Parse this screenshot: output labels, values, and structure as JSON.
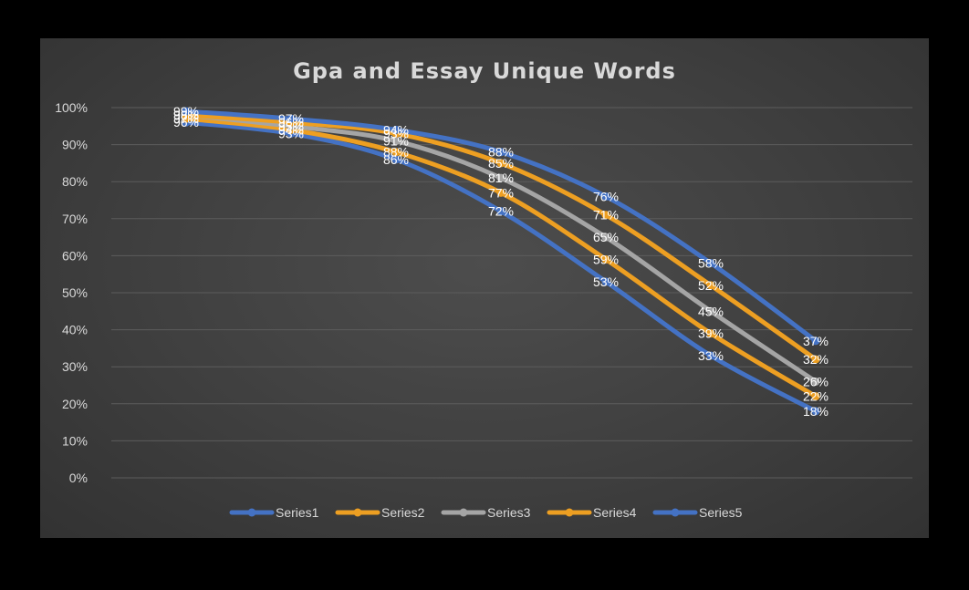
{
  "chart_data": {
    "type": "line",
    "title": "Gpa and Essay Unique Words",
    "xlabel": "",
    "ylabel": "",
    "ylim": [
      0,
      100
    ],
    "y_tick_labels": [
      "0%",
      "10%",
      "20%",
      "30%",
      "40%",
      "50%",
      "60%",
      "70%",
      "80%",
      "90%",
      "100%"
    ],
    "x": [
      1,
      2,
      3,
      4,
      5,
      6,
      7
    ],
    "grid": true,
    "legend_position": "bottom",
    "series": [
      {
        "name": "Series1",
        "color": "#4472c4",
        "values": [
          96,
          93,
          86,
          72,
          53,
          33,
          18
        ]
      },
      {
        "name": "Series2",
        "color": "#ed9f22",
        "values": [
          97,
          94,
          88,
          77,
          59,
          39,
          22
        ]
      },
      {
        "name": "Series3",
        "color": "#a5a5a5",
        "values": [
          98,
          95,
          91,
          81,
          65,
          45,
          26
        ]
      },
      {
        "name": "Series4",
        "color": "#ed9f22",
        "values": [
          98,
          96,
          93,
          85,
          71,
          52,
          32
        ]
      },
      {
        "name": "Series5",
        "color": "#4472c4",
        "values": [
          99,
          97,
          94,
          88,
          76,
          58,
          37
        ]
      }
    ],
    "data_labels": [
      [
        "96%",
        "93%",
        "86%",
        "72%",
        "53%",
        "33%",
        "18%"
      ],
      [
        "97%",
        "94%",
        "88%",
        "77%",
        "59%",
        "39%",
        "22%"
      ],
      [
        "98%",
        "95%",
        "91%",
        "81%",
        "65%",
        "45%",
        "26%"
      ],
      [
        "98%",
        "96%",
        "93%",
        "85%",
        "71%",
        "52%",
        "32%"
      ],
      [
        "99%",
        "97%",
        "94%",
        "88%",
        "76%",
        "58%",
        "37%"
      ]
    ]
  }
}
